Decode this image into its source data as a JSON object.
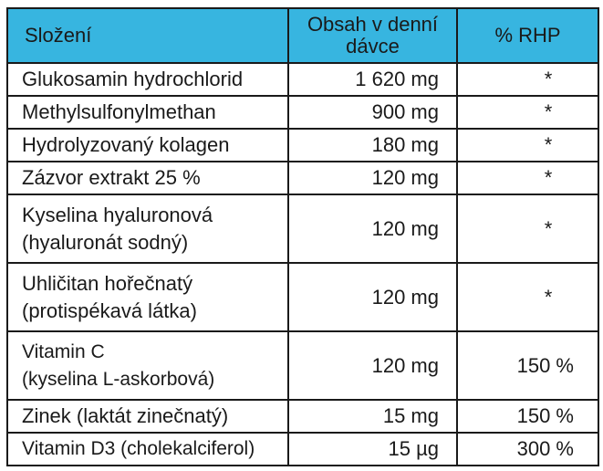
{
  "table": {
    "header": {
      "col1": "Složení",
      "col2_line1": "Obsah v denní",
      "col2_line2": "dávce",
      "col3": "% RHP"
    },
    "rows": [
      {
        "name": "Glukosamin hydrochlorid",
        "amount": "1 620 mg",
        "rhp": "*"
      },
      {
        "name": "Methylsulfonylmethan",
        "amount": "900 mg",
        "rhp": "*"
      },
      {
        "name": "Hydrolyzovaný kolagen",
        "amount": "180 mg",
        "rhp": "*"
      },
      {
        "name": "Zázvor extrakt 25 %",
        "amount": "120 mg",
        "rhp": "*"
      },
      {
        "name_line1": "Kyselina hyaluronová",
        "name_line2": "(hyaluronát sodný)",
        "amount": "120 mg",
        "rhp": "*"
      },
      {
        "name_line1": "Uhličitan hořečnatý",
        "name_line2": "(protispékavá látka)",
        "amount": "120 mg",
        "rhp": "*"
      },
      {
        "name_line1": "Vitamin C",
        "name_line2": "(kyselina L-askorbová)",
        "amount": "120 mg",
        "rhp": "150 %"
      },
      {
        "name": "Zinek (laktát zinečnatý)",
        "amount": "15 mg",
        "rhp": "150 %"
      },
      {
        "name": "Vitamin D3 (cholekalciferol)",
        "amount": "15 µg",
        "rhp": "300 %"
      }
    ]
  },
  "colors": {
    "header_background": "#37b5e0",
    "border": "#1a1a1a"
  }
}
